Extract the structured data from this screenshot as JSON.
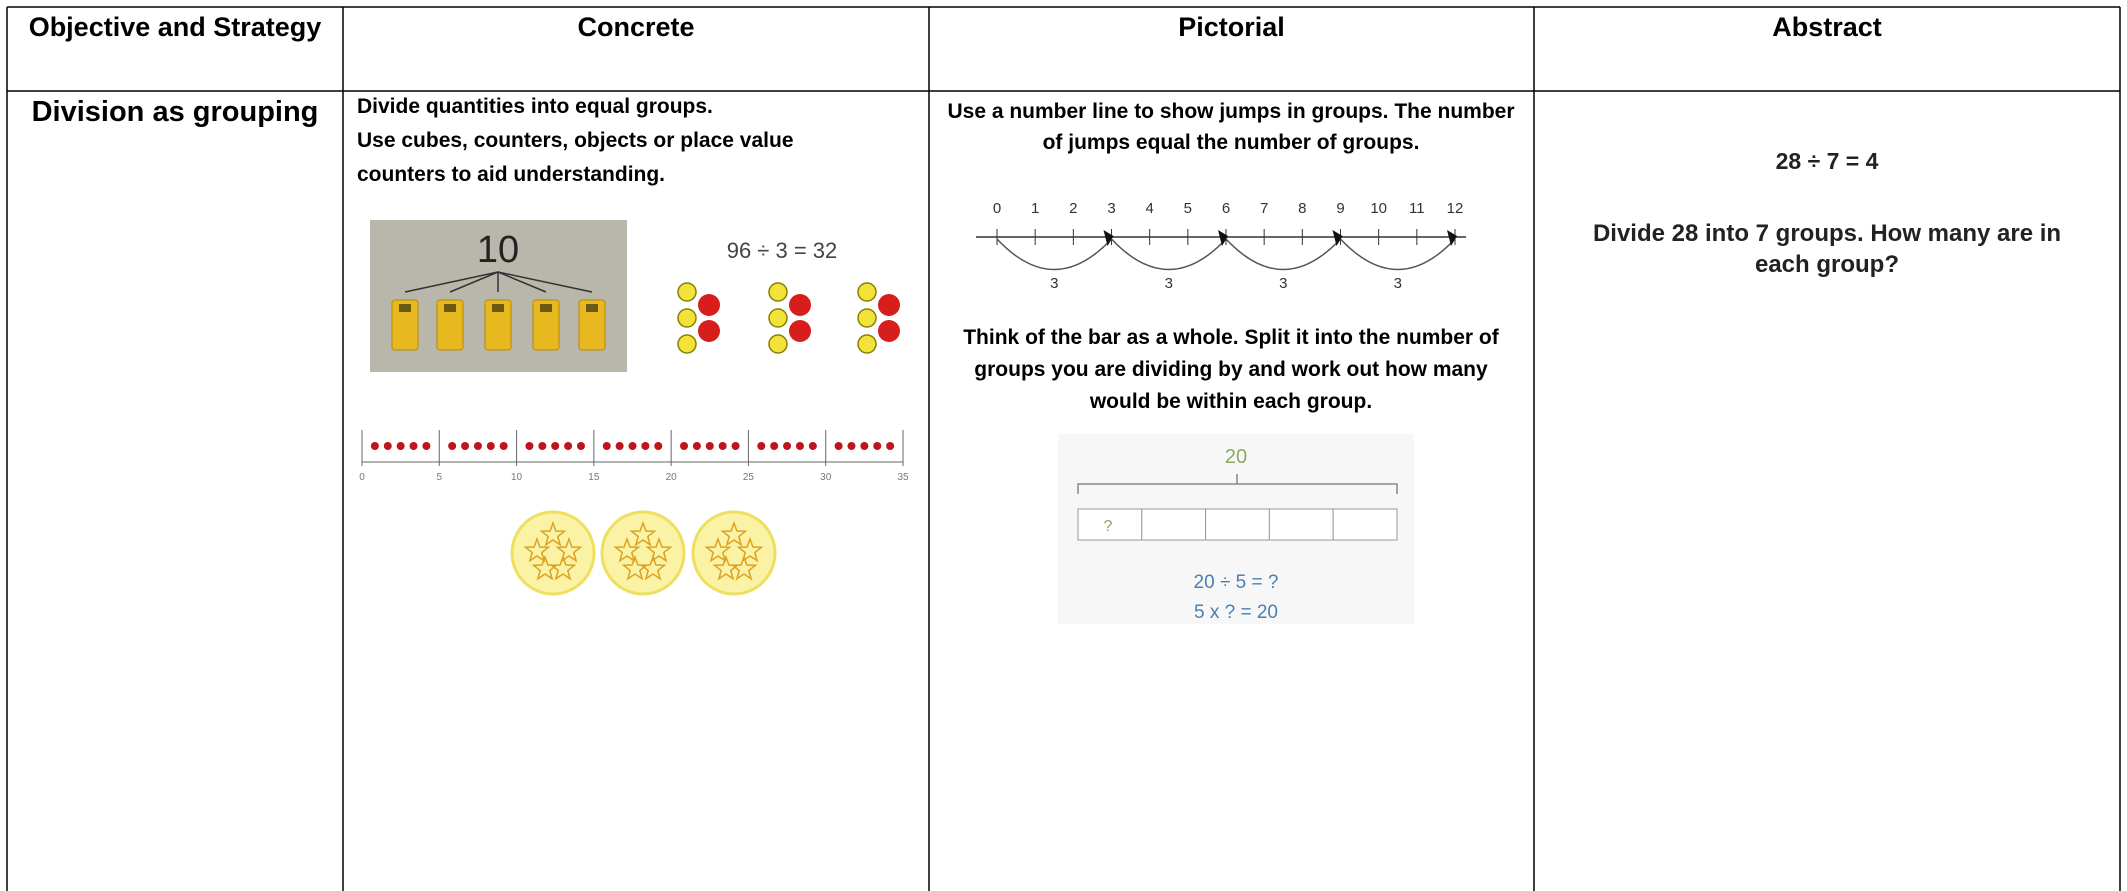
{
  "header": {
    "columns": [
      "Objective and Strategy",
      "Concrete",
      "Pictorial",
      "Abstract"
    ]
  },
  "row": {
    "strategy": "Division as grouping",
    "concrete": {
      "lines": [
        "Divide quantities into equal groups.",
        "Use cubes, counters, objects or place value counters to aid understanding."
      ],
      "cubes_label": "10",
      "counters_equation": "96 ÷ 3 = 32",
      "bead_line_labels": [
        "0",
        "5",
        "10",
        "15",
        "20",
        "25",
        "30",
        "35"
      ]
    },
    "pictorial": {
      "number_line_text": "Use a number line to show jumps in groups. The number of jumps equal the number of groups.",
      "number_line_labels": [
        "0",
        "1",
        "2",
        "3",
        "4",
        "5",
        "6",
        "7",
        "8",
        "9",
        "10",
        "11",
        "12"
      ],
      "jump_labels": [
        "3",
        "3",
        "3",
        "3"
      ],
      "bar_text": "Think of the bar as a whole. Split it into the number of groups you are dividing by and work out how many would be within each group.",
      "bar_total": "20",
      "bar_part": "?",
      "bar_equations": [
        "20 ÷ 5 = ?",
        "5 x ? = 20"
      ]
    },
    "abstract": {
      "equation": "28 ÷ 7 = 4",
      "question": "Divide 28 into 7 groups. How many are in each group?"
    }
  }
}
